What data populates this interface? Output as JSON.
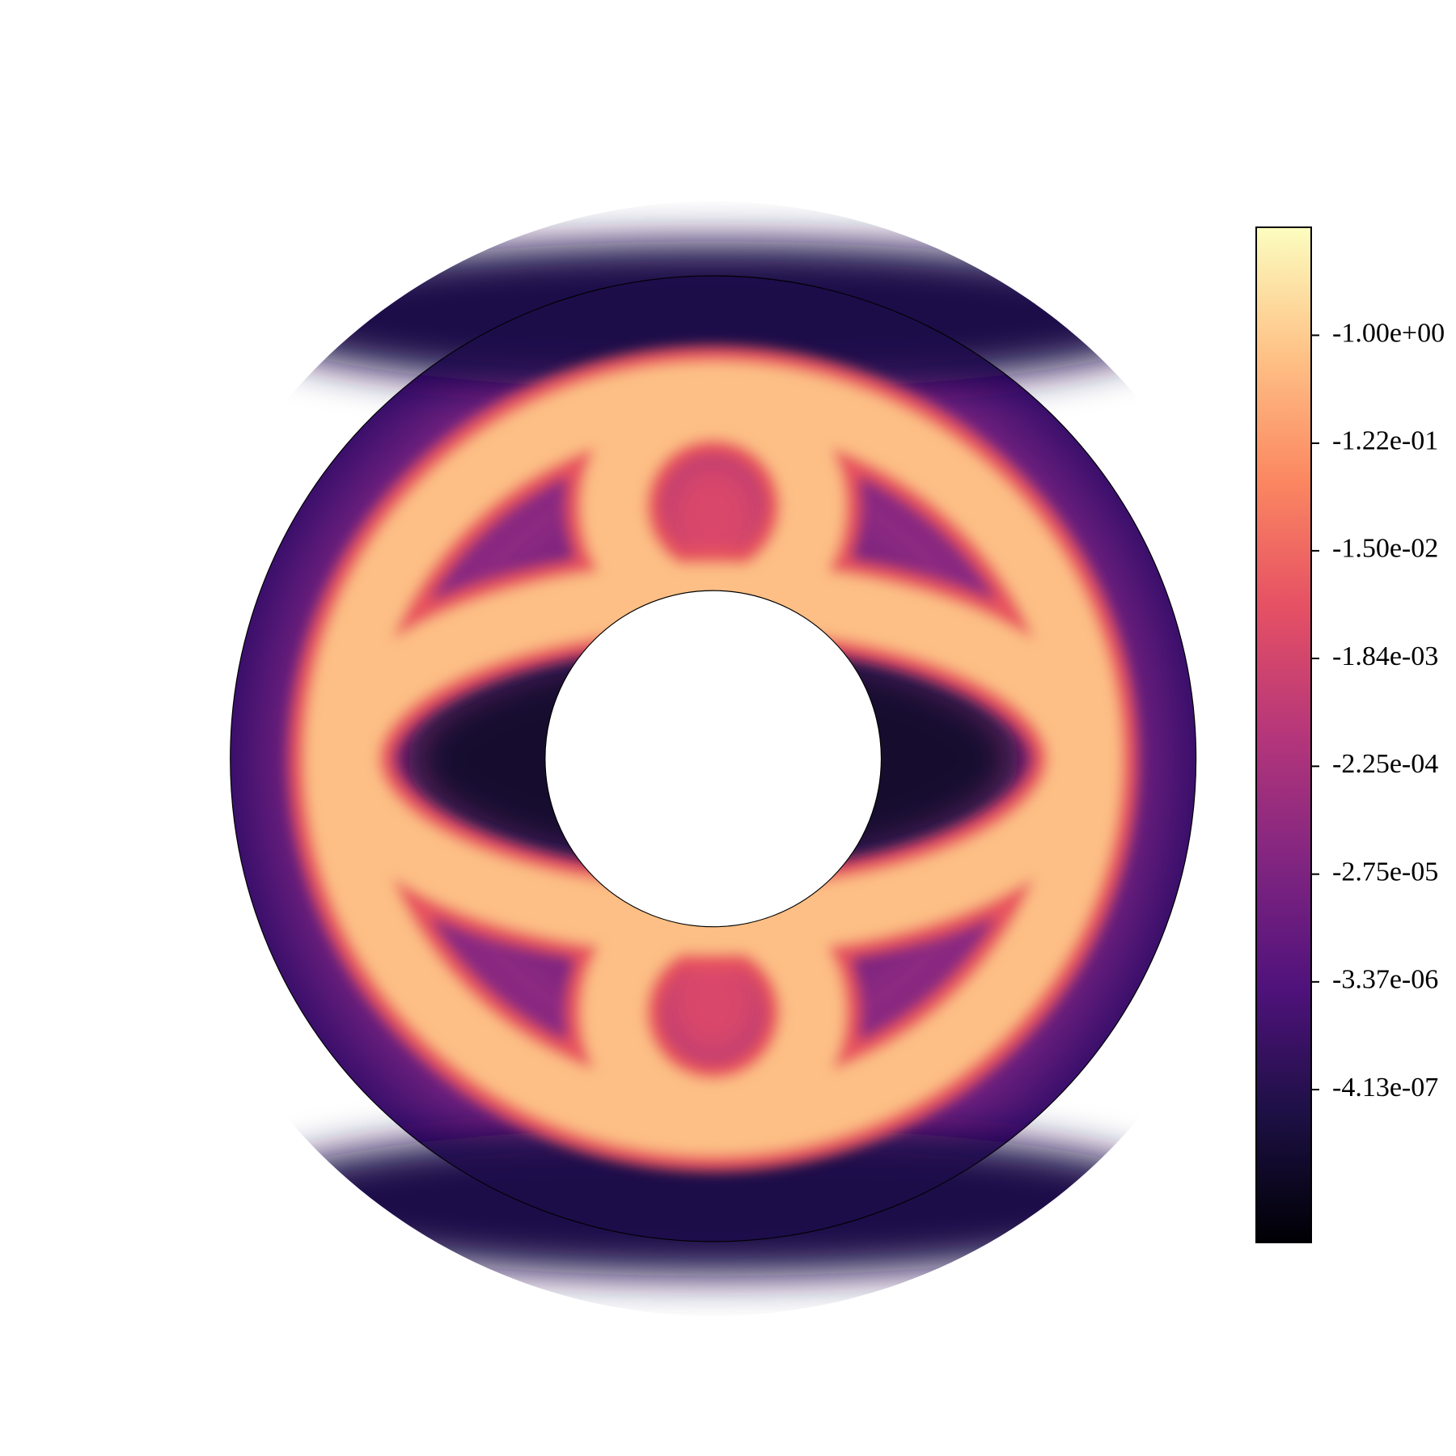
{
  "chart_data": {
    "type": "polar-heatmap",
    "colormap": "magma",
    "color_scale": "log",
    "clim": [
      -2.1e-08,
      -8.2
    ],
    "cticks": [
      {
        "value": -1.0,
        "label": "-1.00e+00"
      },
      {
        "value": -0.122,
        "label": "-1.22e-01"
      },
      {
        "value": -0.015,
        "label": "-1.50e-02"
      },
      {
        "value": -0.00184,
        "label": "-1.84e-03"
      },
      {
        "value": -0.000225,
        "label": "-2.25e-04"
      },
      {
        "value": -2.75e-05,
        "label": "-2.75e-05"
      },
      {
        "value": -3.37e-06,
        "label": "-3.37e-06"
      },
      {
        "value": -4.13e-07,
        "label": "-4.13e-07"
      }
    ]
  }
}
